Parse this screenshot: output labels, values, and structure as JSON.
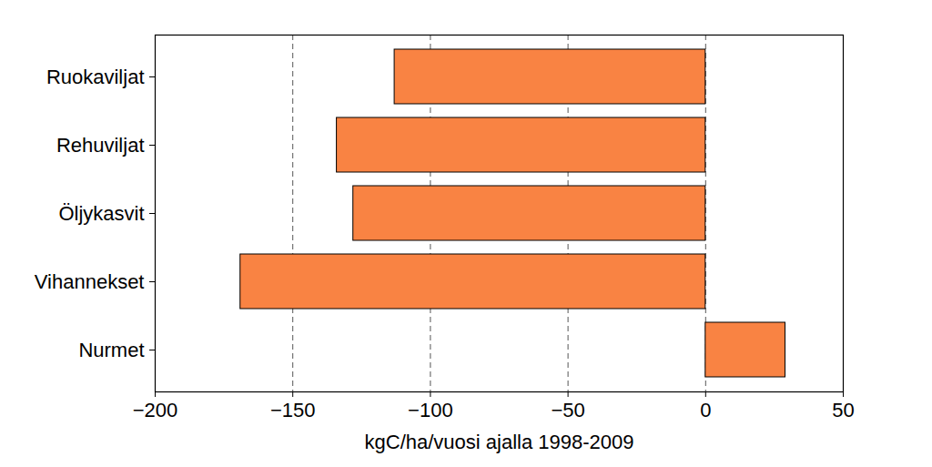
{
  "chart_data": {
    "type": "bar",
    "orientation": "horizontal",
    "categories": [
      "Ruokaviljat",
      "Rehuviljat",
      "Öljykasvit",
      "Vihannekset",
      "Nurmet"
    ],
    "values": [
      -113,
      -134,
      -128,
      -169,
      29
    ],
    "color": "#f98343",
    "x_label": "kgC/ha/vuosi ajalla 1998-2009",
    "xlim": [
      -200,
      50
    ],
    "xticks": [
      -200,
      -150,
      -100,
      -50,
      0,
      50
    ],
    "grid": true
  }
}
